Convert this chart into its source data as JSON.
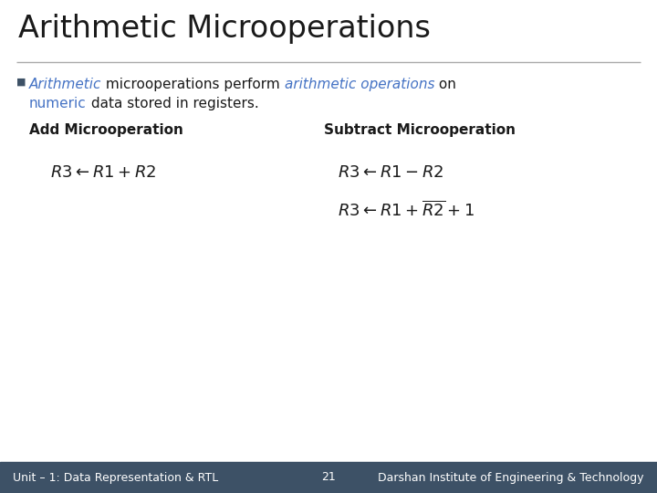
{
  "title": "Arithmetic Microoperations",
  "background_color": "#ffffff",
  "footer_bg_color": "#3d5166",
  "footer_text_color": "#ffffff",
  "footer_left": "Unit – 1: Data Representation & RTL",
  "footer_center": "21",
  "footer_right": "Darshan Institute of Engineering & Technology",
  "bullet_color": "#3d5166",
  "blue_color": "#4472c4",
  "add_header": "Add Microoperation",
  "subtract_header": "Subtract Microoperation",
  "add_formula": "$R3 \\leftarrow R1 + R2$",
  "subtract_formula1": "$R3 \\leftarrow R1 - R2$",
  "subtract_formula2": "$R3 \\leftarrow R1 + \\overline{R2} + 1$",
  "title_fontsize": 24,
  "header_fontsize": 11,
  "formula_fontsize": 13,
  "body_fontsize": 11,
  "footer_fontsize": 9
}
